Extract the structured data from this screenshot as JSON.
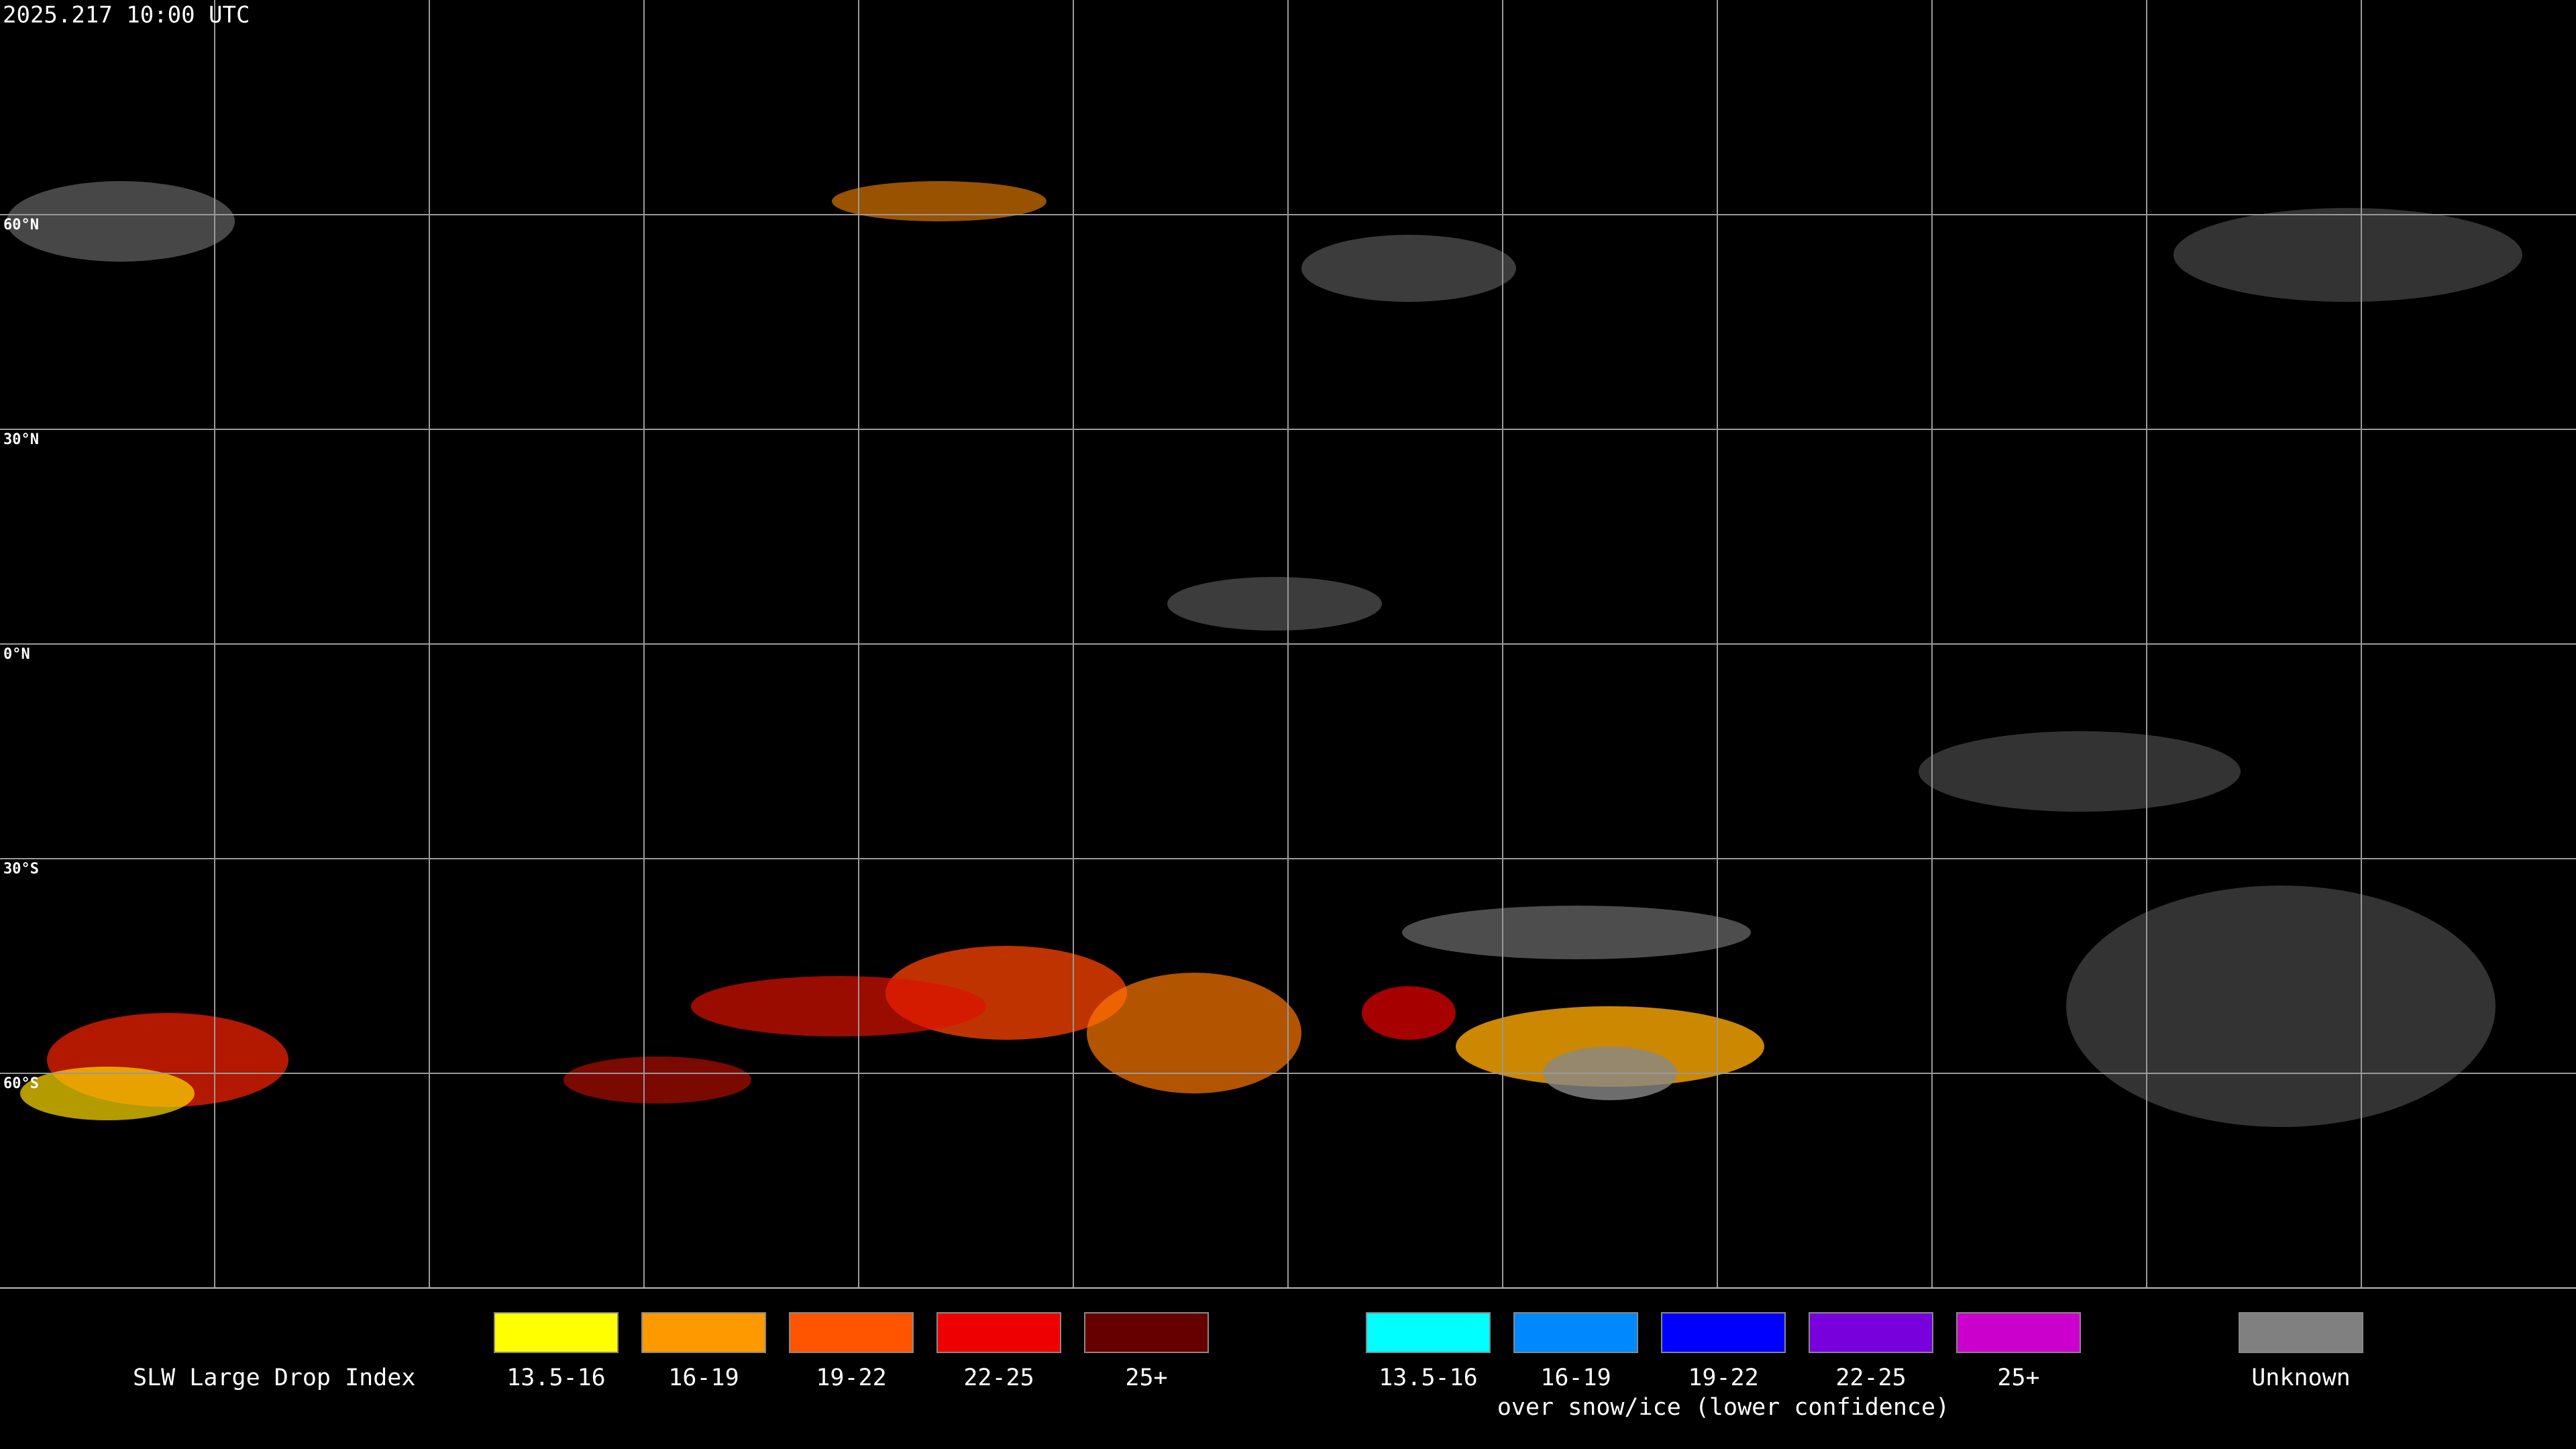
{
  "header": {
    "timestamp": "2025.217 10:00 UTC"
  },
  "map": {
    "lat_labels": [
      "60°N",
      "30°N",
      "0°N",
      "30°S",
      "60°S"
    ]
  },
  "legend": {
    "title": "SLW Large Drop Index",
    "groups": [
      {
        "items": [
          {
            "label": "13.5-16",
            "color": "#ffff00"
          },
          {
            "label": "16-19",
            "color": "#ff9900"
          },
          {
            "label": "19-22",
            "color": "#ff5500"
          },
          {
            "label": "22-25",
            "color": "#ee0000"
          },
          {
            "label": "25+",
            "color": "#660000"
          }
        ]
      },
      {
        "caption": "over snow/ice (lower confidence)",
        "items": [
          {
            "label": "13.5-16",
            "color": "#00ffff"
          },
          {
            "label": "16-19",
            "color": "#0088ff"
          },
          {
            "label": "19-22",
            "color": "#0000ff"
          },
          {
            "label": "22-25",
            "color": "#7700dd"
          },
          {
            "label": "25+",
            "color": "#cc00cc"
          }
        ]
      },
      {
        "items": [
          {
            "label": "Unknown",
            "color": "#808080"
          }
        ]
      }
    ]
  }
}
